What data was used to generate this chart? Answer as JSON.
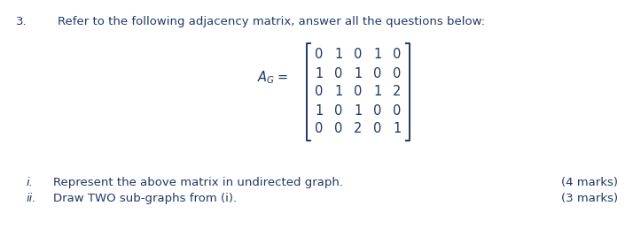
{
  "question_number": "3.",
  "question_text": "Refer to the following adjacency matrix, answer all the questions below:",
  "matrix": [
    [
      0,
      1,
      0,
      1,
      0
    ],
    [
      1,
      0,
      1,
      0,
      0
    ],
    [
      0,
      1,
      0,
      1,
      2
    ],
    [
      1,
      0,
      1,
      0,
      0
    ],
    [
      0,
      0,
      2,
      0,
      1
    ]
  ],
  "sub_questions": [
    {
      "roman": "i.",
      "text": "Represent the above matrix in undirected graph.",
      "marks": "(4 marks)"
    },
    {
      "roman": "ii.",
      "text": "Draw TWO sub-graphs from (i).",
      "marks": "(3 marks)"
    }
  ],
  "text_color": "#1f3864",
  "bg_color": "#ffffff",
  "font_size_main": 9.5,
  "font_size_matrix": 10.5,
  "font_size_label": 10.5
}
